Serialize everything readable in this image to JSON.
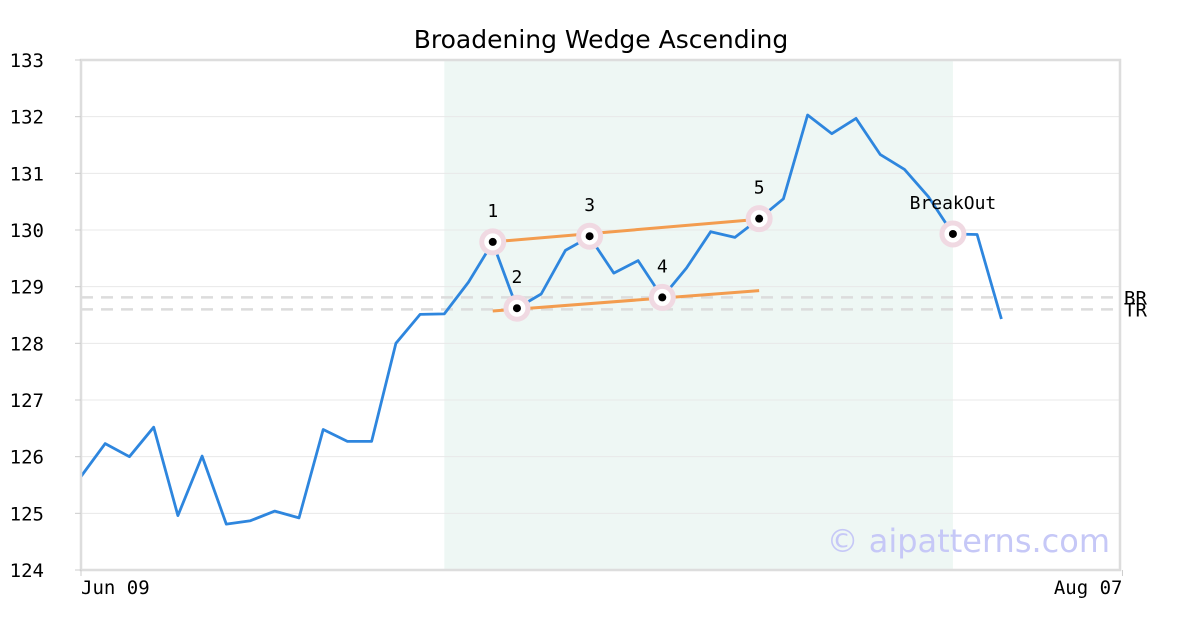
{
  "chart_data": {
    "type": "line",
    "title": "Broadening Wedge Ascending",
    "ylim": [
      124,
      133
    ],
    "y_ticks": [
      "124",
      "125",
      "126",
      "127",
      "128",
      "129",
      "130",
      "131",
      "132",
      "133"
    ],
    "x_tick_labels": [
      {
        "index": 0,
        "label": "Jun 09"
      },
      {
        "index": 43,
        "label": "Aug 07"
      }
    ],
    "grid": true,
    "series": [
      {
        "color": "#2e86de",
        "values": [
          125.65,
          126.23,
          126.0,
          126.52,
          124.96,
          126.01,
          124.81,
          124.87,
          125.04,
          124.92,
          126.48,
          126.27,
          126.27,
          128.0,
          128.51,
          128.52,
          129.08,
          129.78,
          128.62,
          128.87,
          129.64,
          129.88,
          129.24,
          129.46,
          128.81,
          129.33,
          129.97,
          129.87,
          130.2,
          130.55,
          132.03,
          131.7,
          131.97,
          131.33,
          131.07,
          130.58,
          129.93,
          129.92,
          128.43
        ]
      }
    ],
    "shaded_region": {
      "start_index": 15,
      "end_index": 36,
      "color": "#eef7f4"
    },
    "trend_lines": [
      {
        "color": "#f39c4f",
        "from": {
          "index": 17,
          "value": 129.79
        },
        "to": {
          "index": 28,
          "value": 130.19
        }
      },
      {
        "color": "#f39c4f",
        "from": {
          "index": 17,
          "value": 128.57
        },
        "to": {
          "index": 28,
          "value": 128.93
        }
      }
    ],
    "pattern_points": [
      {
        "label": "1",
        "index": 17,
        "value": 129.79
      },
      {
        "label": "2",
        "index": 18,
        "value": 128.62
      },
      {
        "label": "3",
        "index": 21,
        "value": 129.89
      },
      {
        "label": "4",
        "index": 24,
        "value": 128.81
      },
      {
        "label": "5",
        "index": 28,
        "value": 130.2
      },
      {
        "label": "BreakOut",
        "index": 36,
        "value": 129.93
      }
    ],
    "horizontal_lines": [
      {
        "label": "BR",
        "value": 128.81
      },
      {
        "label": "TR",
        "value": 128.6
      }
    ],
    "watermark": "© aipatterns.com"
  }
}
